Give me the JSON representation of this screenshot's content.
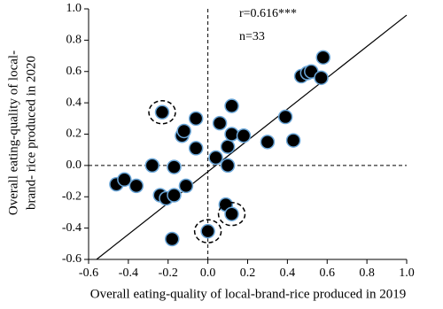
{
  "chart_data": {
    "type": "scatter",
    "x_label": "Overall eating-quality  of local-brand-rice  produced in 2019",
    "y_label": [
      "Overall eating-quality  of local-",
      "brand- rice produced in 2020"
    ],
    "annotations": [
      "r=0.616***",
      "n=33"
    ],
    "x": [
      -0.46,
      -0.42,
      -0.36,
      -0.28,
      -0.24,
      -0.21,
      -0.17,
      -0.17,
      -0.11,
      -0.18,
      -0.23,
      -0.13,
      -0.12,
      -0.06,
      -0.06,
      0.0,
      0.04,
      0.06,
      0.1,
      0.1,
      0.12,
      0.12,
      0.18,
      0.09,
      0.12,
      0.3,
      0.39,
      0.43,
      0.47,
      0.5,
      0.52,
      0.57,
      0.58
    ],
    "y": [
      -0.12,
      -0.09,
      -0.13,
      0.0,
      -0.19,
      -0.21,
      -0.19,
      -0.01,
      -0.13,
      -0.47,
      0.34,
      0.19,
      0.22,
      0.3,
      0.11,
      -0.42,
      0.05,
      0.27,
      0.0,
      0.12,
      0.38,
      0.2,
      0.19,
      -0.25,
      -0.31,
      0.15,
      0.31,
      0.16,
      0.57,
      0.59,
      0.6,
      0.56,
      0.69
    ],
    "highlighted": [
      10,
      15,
      24
    ],
    "color": "#000000",
    "edge_color": "#6aa6d8",
    "fit_line": {
      "slope": 1.0,
      "intercept": -0.04
    },
    "zero_lines": true,
    "xlim": [
      -0.6,
      1.0
    ],
    "ylim": [
      -0.6,
      1.0
    ],
    "xticks": [
      -0.6,
      -0.4,
      -0.2,
      {
        "value": 0,
        "label": "0.0"
      },
      0.2,
      0.4,
      0.6,
      0.8,
      {
        "value": 1,
        "label": "1.0"
      }
    ],
    "yticks": [
      -0.6,
      -0.4,
      -0.2,
      {
        "value": 0,
        "label": "0.0"
      },
      0.2,
      0.4,
      0.6,
      0.8,
      {
        "value": 1,
        "label": "1.0"
      }
    ]
  }
}
